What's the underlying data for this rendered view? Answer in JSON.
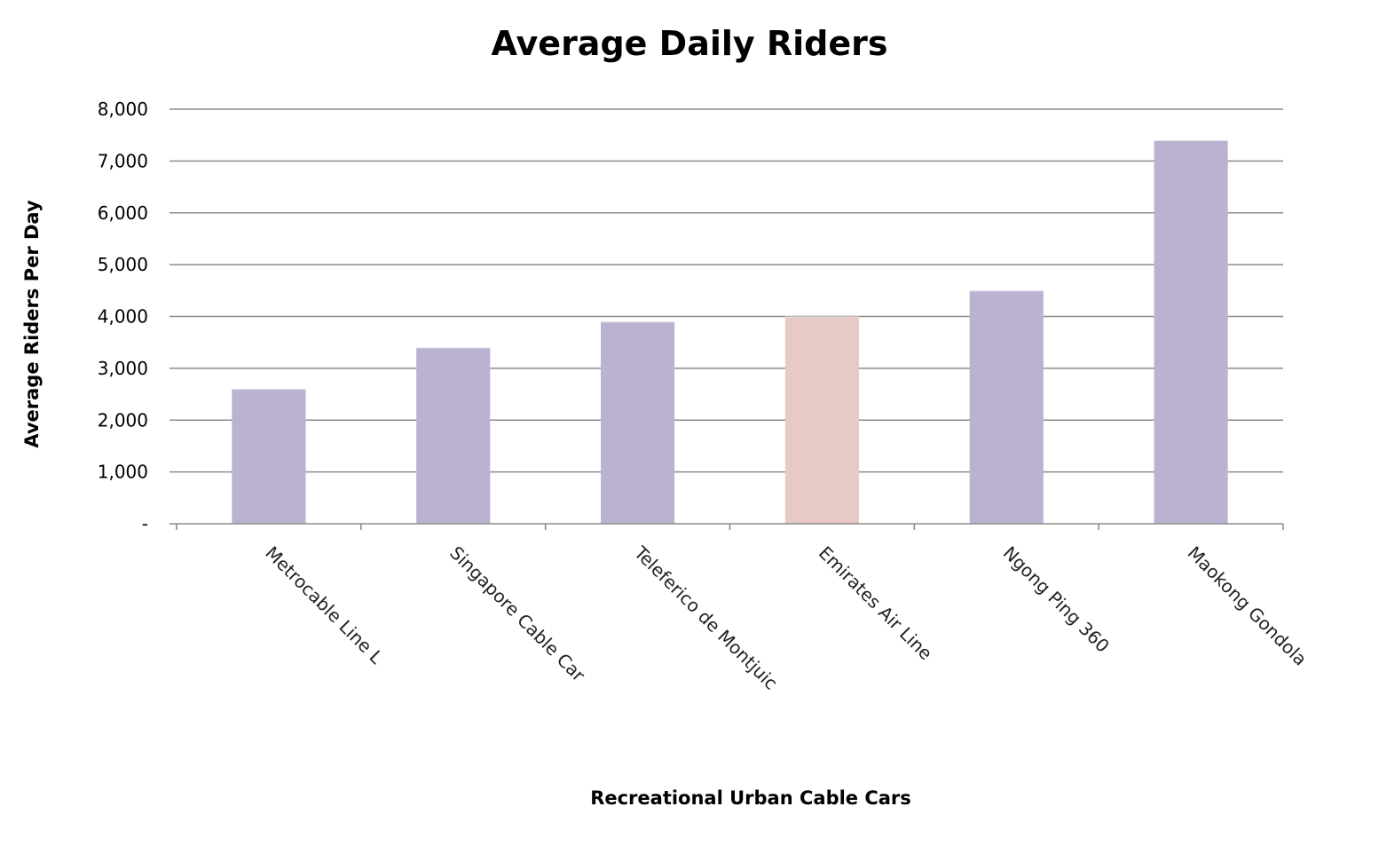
{
  "chart_data": {
    "type": "bar",
    "title": "Average Daily Riders",
    "xlabel": "Recreational Urban Cable Cars",
    "ylabel": "Average Riders Per Day",
    "ylim": [
      0,
      8000
    ],
    "y_ticks": [
      0,
      1000,
      2000,
      3000,
      4000,
      5000,
      6000,
      7000,
      8000
    ],
    "y_tick_labels": [
      "-",
      "1,000",
      "2,000",
      "3,000",
      "4,000",
      "5,000",
      "6,000",
      "7,000",
      "8,000"
    ],
    "grid": true,
    "categories": [
      "Metrocable Line L",
      "Singapore Cable Car",
      "Teleferico de Montjuic",
      "Emirates Air Line",
      "Ngong Ping 360",
      "Maokong Gondola"
    ],
    "values": [
      2600,
      3400,
      3900,
      4000,
      4500,
      7400
    ],
    "bar_colors": [
      "#bab2d0",
      "#bab2d0",
      "#bab2d0",
      "#e7c9c6",
      "#bab2d0",
      "#bab2d0"
    ],
    "gridline_color": "#8c8c8c"
  }
}
